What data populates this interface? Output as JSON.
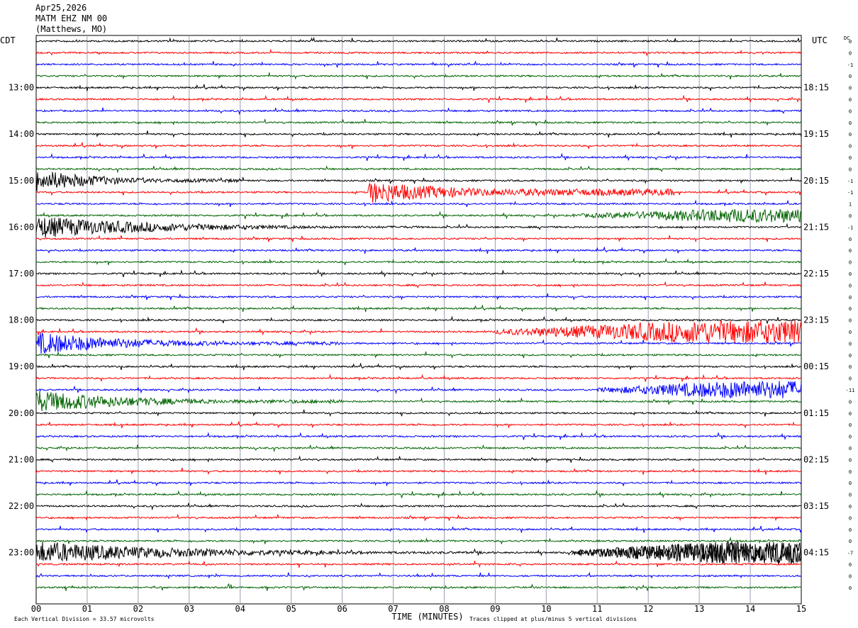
{
  "header": {
    "date": "Apr25,2026",
    "station": "MATM EHZ NM 00",
    "location": "(Matthews, MO)"
  },
  "left_tz": "CDT",
  "right_tz": "UTC",
  "dc_header": "DC",
  "footer": {
    "scale_note": "Each Vertical Division = 33.57 microvolts",
    "xlabel": "TIME (MINUTES)",
    "clip_note": "Traces clipped at plus/minus 5 vertical divisions"
  },
  "colors": {
    "trace_cycle": [
      "#000000",
      "#ff0000",
      "#0000ff",
      "#006400"
    ],
    "grid": "#9aa0b0"
  },
  "chart_data": {
    "type": "line",
    "title": "MATM EHZ NM 00 (Matthews, MO)",
    "xlabel": "TIME (MINUTES)",
    "x_ticks": [
      "00",
      "01",
      "02",
      "03",
      "04",
      "05",
      "06",
      "07",
      "08",
      "09",
      "10",
      "11",
      "12",
      "13",
      "14",
      "15"
    ],
    "xlim": [
      0,
      15
    ],
    "left_labels": [
      "13:00",
      "14:00",
      "15:00",
      "16:00",
      "17:00",
      "18:00",
      "19:00",
      "20:00",
      "21:00",
      "22:00",
      "23:00"
    ],
    "right_labels": [
      "18:15",
      "19:15",
      "20:15",
      "21:15",
      "22:15",
      "23:15",
      "00:15",
      "01:15",
      "02:15",
      "03:15",
      "04:15"
    ],
    "traces_per_hour": 4,
    "first_label_trace": 4,
    "dc_offsets": [
      "0",
      "0",
      "-1",
      "0",
      "0",
      "0",
      "0",
      "0",
      "0",
      "0",
      "0",
      "0",
      "-1",
      "-1",
      "1",
      "0",
      "-1",
      "0",
      "0",
      "0",
      "0",
      "0",
      "0",
      "0",
      "0",
      "0",
      "0",
      "0",
      "0",
      "0",
      "-11",
      "0",
      "0",
      "0",
      "0",
      "0",
      "0",
      "0",
      "0",
      "0",
      "0",
      "0",
      "0",
      "0",
      "-7",
      "0",
      "0",
      "0"
    ],
    "events": [
      {
        "trace": 12,
        "start_min": 0.0,
        "end_min": 4.0,
        "peak_amp": 5,
        "decay_to": 0.15
      },
      {
        "trace": 16,
        "start_min": 0.0,
        "end_min": 7.5,
        "peak_amp": 5,
        "decay_to": 0.1
      },
      {
        "trace": 13,
        "start_min": 6.5,
        "end_min": 12.5,
        "peak_amp": 5,
        "decay_to": 0.3
      },
      {
        "trace": 15,
        "start_min": 10.5,
        "end_min": 15.0,
        "peak_amp": 3,
        "decay_to": 1
      },
      {
        "trace": 26,
        "start_min": 0.0,
        "end_min": 6.0,
        "peak_amp": 5,
        "decay_to": 0.15
      },
      {
        "trace": 25,
        "start_min": 9.0,
        "end_min": 15.0,
        "peak_amp": 5,
        "decay_to": 1
      },
      {
        "trace": 31,
        "start_min": 0.0,
        "end_min": 6.0,
        "peak_amp": 5,
        "decay_to": 0.15
      },
      {
        "trace": 30,
        "start_min": 11.0,
        "end_min": 15.0,
        "peak_amp": 4,
        "decay_to": 1
      },
      {
        "trace": 44,
        "start_min": 0.0,
        "end_min": 9.0,
        "peak_amp": 5,
        "decay_to": 0.1
      },
      {
        "trace": 44,
        "start_min": 10.5,
        "end_min": 15.0,
        "peak_amp": 5,
        "decay_to": 1.0,
        "color_override": "#000000"
      }
    ]
  }
}
